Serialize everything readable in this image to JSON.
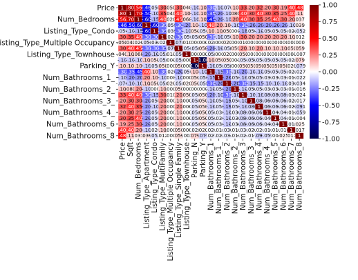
{
  "chart_data": {
    "type": "heatmap",
    "title": "",
    "xlabel": "",
    "ylabel": "",
    "colormap": "seismic",
    "vmin": -1.0,
    "vmax": 1.0,
    "colorbar_ticks": [
      "1.00",
      "0.75",
      "0.50",
      "0.25",
      "0.00",
      "-0.25",
      "-0.50",
      "-0.75",
      "-1.00"
    ],
    "variables": [
      "Price",
      "Sqft",
      "Num_Bedrooms",
      "Listing_Type_Apartment",
      "Listing_Type_Condo",
      "Listing_Type_MultiFamily",
      "Listing_Type_Multiple Occupancy",
      "Listing_Type_Single Family",
      "Listing_Type_Townhouse",
      "Parking_N",
      "Parking_Y",
      "Num_Bathrooms_1",
      "Num_Bathrooms_1_",
      "Num_Bathrooms_2",
      "Num_Bathrooms_2_",
      "Num_Bathrooms_3",
      "Num_Bathrooms_3_",
      "Num_Bathrooms_4",
      "Num_Bathrooms_4_",
      "Num_Bathrooms_5",
      "Num_Bathrooms_6",
      "Num_Bathrooms_7",
      "Num_Bathrooms_8"
    ],
    "y_tick_labels": [
      "Price",
      "",
      "Num_Bedrooms",
      "",
      "Listing_Type_Condo",
      "",
      "Listing_Type_Multiple Occupancy",
      "",
      "Listing_Type_Townhouse",
      "",
      "Parking_Y",
      "",
      "Num_Bathrooms_1_",
      "",
      "Num_Bathrooms_2_",
      "",
      "Num_Bathrooms_3_",
      "",
      "Num_Bathrooms_4_",
      "",
      "Num_Bathrooms_6",
      "",
      "Num_Bathrooms_8"
    ],
    "matrix": [
      [
        1.0,
        0.8,
        0.56,
        -0.46,
        -0.05,
        0.3,
        0.05,
        0.3,
        0.04,
        -0.1,
        0.1,
        -0.3,
        -0.1,
        -0.07,
        0.1,
        0.33,
        0.2,
        0.32,
        0.2,
        0.3,
        0.19,
        0.4,
        0.48
      ],
      [
        0.8,
        1.0,
        0.7,
        -0.5,
        -0.1,
        0.35,
        0.04,
        0.4,
        0.1,
        -0.1,
        0.1,
        -0.35,
        -0.2,
        -0.1,
        0.08,
        0.4,
        0.3,
        0.4,
        0.3,
        0.35,
        0.25,
        0.4,
        0.11
      ],
      [
        0.56,
        0.7,
        1.0,
        -0.6,
        -0.15,
        0.4,
        0.02,
        0.45,
        0.06,
        -0.1,
        0.1,
        -0.45,
        -0.2,
        -0.1,
        0.2,
        0.4,
        0.3,
        0.35,
        0.25,
        0.4,
        0.3,
        0.2,
        0.037
      ],
      [
        -0.46,
        -0.5,
        -0.6,
        1.0,
        -0.6,
        -0.3,
        -0.05,
        -0.3,
        -0.2,
        0.1,
        -0.1,
        0.4,
        0.2,
        0.1,
        -0.1,
        -0.3,
        -0.2,
        -0.2,
        -0.2,
        -0.2,
        -0.2,
        -0.1,
        0.039
      ],
      [
        -0.05,
        -0.1,
        -0.15,
        -0.6,
        1.0,
        -0.3,
        -0.03,
        -0.3,
        -0.1,
        0.05,
        -0.05,
        0.1,
        0.1,
        0.05,
        0.0,
        -0.15,
        -0.05,
        -0.1,
        -0.05,
        -0.05,
        -0.05,
        -0.02,
        -0.052
      ],
      [
        0.3,
        0.35,
        0.4,
        -0.3,
        -0.3,
        1.0,
        -0.02,
        -0.3,
        -0.05,
        -0.05,
        0.05,
        -0.3,
        -0.1,
        -0.05,
        0.1,
        0.3,
        0.2,
        0.2,
        0.2,
        0.2,
        0.2,
        0.1,
        0.012
      ],
      [
        0.05,
        0.04,
        0.02,
        -0.05,
        -0.03,
        -0.02,
        1.0,
        -0.07,
        0.01,
        0.0,
        0.0,
        -0.02,
        0.0,
        0.02,
        0.0,
        0.01,
        0.0,
        0.0,
        0.0,
        0.0,
        0.0,
        0.0,
        0.0
      ],
      [
        0.3,
        0.4,
        0.45,
        -0.3,
        -0.3,
        -0.3,
        -0.07,
        1.0,
        -0.05,
        -0.05,
        0.05,
        -0.2,
        -0.1,
        -0.05,
        0.05,
        0.2,
        0.1,
        0.2,
        0.1,
        0.1,
        0.1,
        0.05,
        0.059
      ],
      [
        0.04,
        0.1,
        0.06,
        -0.2,
        -0.1,
        -0.05,
        0.01,
        -0.05,
        1.0,
        0.0,
        0.0,
        -0.05,
        0.0,
        0.02,
        0.0,
        0.05,
        0.0,
        0.0,
        0.0,
        0.0,
        0.0,
        0.0,
        -0.007
      ],
      [
        -0.1,
        -0.1,
        -0.1,
        0.1,
        0.05,
        -0.05,
        0.0,
        -0.05,
        0.0,
        1.0,
        -1.0,
        0.1,
        0.05,
        0.05,
        0.0,
        -0.05,
        -0.05,
        -0.05,
        -0.05,
        -0.05,
        -0.05,
        -0.02,
        0.079
      ],
      [
        0.1,
        0.1,
        0.1,
        -0.1,
        -0.05,
        0.05,
        0.0,
        0.05,
        0.0,
        -1.0,
        1.0,
        -0.1,
        -0.05,
        -0.05,
        0.0,
        0.05,
        0.05,
        0.05,
        0.05,
        0.05,
        0.05,
        0.02,
        -0.079
      ],
      [
        -0.3,
        -0.35,
        -0.45,
        0.4,
        0.1,
        -0.3,
        -0.02,
        -0.2,
        -0.05,
        0.1,
        -0.1,
        1.0,
        -0.15,
        -0.3,
        -0.1,
        -0.2,
        -0.1,
        -0.1,
        -0.05,
        -0.05,
        -0.05,
        -0.02,
        -0.027
      ],
      [
        -0.1,
        -0.2,
        -0.2,
        0.2,
        0.1,
        -0.1,
        0.0,
        -0.1,
        0.0,
        0.05,
        -0.05,
        -0.15,
        1.0,
        -0.2,
        -0.05,
        -0.1,
        -0.05,
        -0.05,
        -0.03,
        -0.03,
        -0.03,
        -0.01,
        -0.022
      ],
      [
        -0.07,
        -0.1,
        -0.1,
        0.1,
        0.05,
        -0.05,
        0.02,
        -0.05,
        0.02,
        0.05,
        -0.05,
        -0.3,
        -0.2,
        1.0,
        -0.2,
        -0.3,
        -0.15,
        -0.15,
        -0.1,
        -0.1,
        -0.1,
        -0.03,
        -0.034
      ],
      [
        0.1,
        0.08,
        0.2,
        -0.1,
        0.0,
        0.1,
        0.0,
        0.05,
        0.0,
        0.0,
        0.0,
        -0.1,
        -0.05,
        -0.2,
        1.0,
        -0.1,
        -0.05,
        -0.05,
        -0.03,
        -0.03,
        -0.03,
        -0.01,
        -0.016
      ],
      [
        0.33,
        0.4,
        0.4,
        -0.3,
        -0.15,
        0.3,
        0.01,
        0.2,
        0.05,
        -0.05,
        0.05,
        -0.2,
        -0.1,
        -0.3,
        -0.1,
        1.0,
        -0.1,
        -0.1,
        -0.08,
        -0.08,
        -0.08,
        -0.03,
        -0.024
      ],
      [
        0.2,
        0.3,
        0.3,
        -0.2,
        -0.05,
        0.2,
        0.0,
        0.1,
        0.0,
        -0.05,
        0.05,
        -0.1,
        -0.05,
        -0.15,
        -0.05,
        -0.1,
        1.0,
        -0.08,
        -0.06,
        -0.06,
        -0.06,
        -0.02,
        -0.017
      ],
      [
        0.32,
        0.4,
        0.35,
        -0.2,
        -0.1,
        0.2,
        0.0,
        0.2,
        0.0,
        -0.05,
        0.05,
        -0.1,
        -0.05,
        -0.15,
        -0.05,
        -0.1,
        -0.08,
        1.0,
        -0.06,
        -0.06,
        -0.06,
        -0.02,
        -0.091
      ],
      [
        0.2,
        0.3,
        0.25,
        -0.2,
        -0.05,
        0.2,
        0.0,
        0.1,
        0.0,
        -0.05,
        0.05,
        -0.05,
        -0.03,
        -0.1,
        -0.03,
        -0.08,
        -0.06,
        -0.06,
        1.0,
        -0.04,
        -0.04,
        -0.01,
        -0.059
      ],
      [
        0.3,
        0.35,
        0.4,
        -0.2,
        -0.05,
        0.2,
        0.0,
        0.1,
        0.0,
        -0.05,
        0.05,
        -0.05,
        -0.03,
        -0.1,
        -0.03,
        -0.08,
        -0.06,
        -0.06,
        -0.04,
        1.0,
        -0.04,
        -0.01,
        -0.004
      ],
      [
        0.19,
        0.25,
        0.3,
        -0.2,
        -0.05,
        0.2,
        0.0,
        0.1,
        0.0,
        -0.05,
        0.05,
        -0.05,
        -0.03,
        -0.1,
        -0.03,
        -0.08,
        -0.06,
        -0.06,
        -0.04,
        -0.04,
        1.0,
        -0.01,
        0.025
      ],
      [
        0.4,
        0.4,
        0.2,
        -0.1,
        -0.02,
        0.1,
        0.0,
        0.05,
        0.0,
        -0.02,
        0.02,
        -0.02,
        -0.01,
        -0.03,
        -0.01,
        -0.03,
        -0.02,
        -0.02,
        -0.01,
        -0.01,
        -0.01,
        1.0,
        0.017
      ],
      [
        0.48,
        0.11,
        0.037,
        0.039,
        -0.052,
        0.012,
        0.0,
        0.059,
        -0.007,
        0.079,
        -0.079,
        -0.027,
        -0.022,
        -0.034,
        -0.016,
        -0.024,
        -0.017,
        -0.091,
        -0.059,
        -0.004,
        0.025,
        0.017,
        1.0
      ]
    ]
  }
}
